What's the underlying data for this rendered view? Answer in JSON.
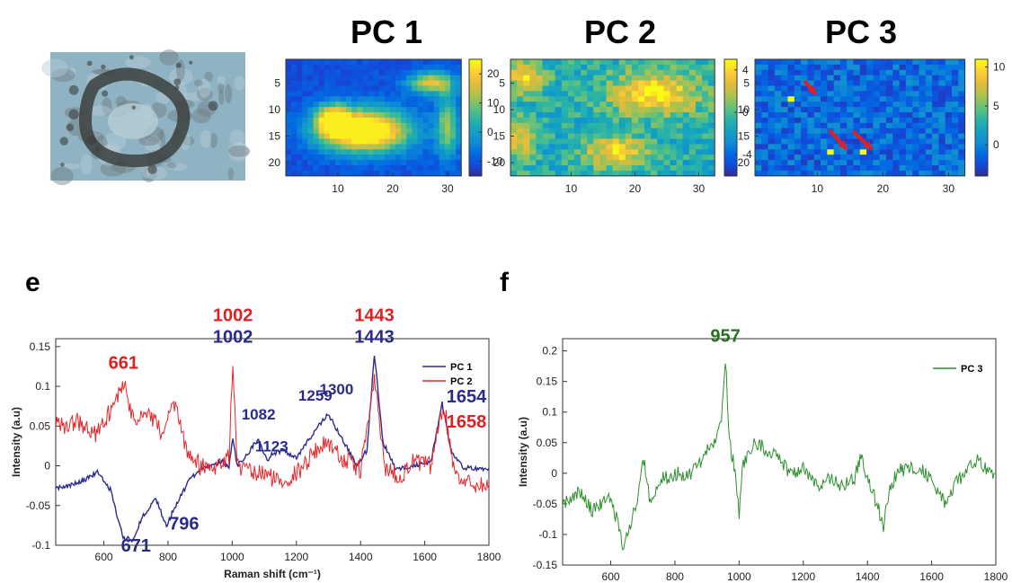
{
  "photo": {
    "colors": {
      "bg": "#8fb3c3",
      "dark": "#3c3f3d",
      "mid": "#6f7d80",
      "light": "#b8cdd6"
    }
  },
  "heatmap_titles": [
    "PC 1",
    "PC 2",
    "PC 3"
  ],
  "panel_labels": {
    "e": "e",
    "f": "f"
  },
  "colors": {
    "pc1": "#2c2c8f",
    "pc2": "#e8262a",
    "pc3": "#2f8f2f",
    "peak_red": "#e02020",
    "peak_blue": "#2a2a8a",
    "peak_green": "#2a6e22",
    "arrow": "#e02020"
  },
  "chart_data": [
    {
      "type": "heatmap",
      "title": "PC 1",
      "x_ticks": [
        10,
        20,
        30
      ],
      "y_ticks": [
        5,
        10,
        15,
        20
      ],
      "colorbar_ticks": [
        20,
        10,
        0,
        -10
      ],
      "clim": [
        -15,
        25
      ],
      "cols": 32,
      "rows": 22,
      "note": "",
      "blobs": [
        [
          15,
          14,
          8,
          4,
          45
        ],
        [
          9,
          12,
          3,
          3,
          30
        ],
        [
          27,
          5,
          4,
          2,
          28
        ],
        [
          30,
          13,
          2,
          6,
          22
        ]
      ]
    },
    {
      "type": "heatmap",
      "title": "PC 2",
      "x_ticks": [
        10,
        20,
        30
      ],
      "y_ticks": [
        5,
        10,
        15,
        20
      ],
      "colorbar_ticks": [
        4,
        0,
        -4
      ],
      "clim": [
        -6,
        5
      ],
      "cols": 32,
      "rows": 22
    },
    {
      "type": "heatmap",
      "title": "PC 3",
      "x_ticks": [
        10,
        20,
        30
      ],
      "y_ticks": [
        5,
        10,
        15,
        20
      ],
      "colorbar_ticks": [
        10,
        5,
        0
      ],
      "clim": [
        -4,
        11
      ],
      "cols": 32,
      "rows": 22,
      "hotspots": [
        [
          6,
          8
        ],
        [
          12,
          18
        ],
        [
          17,
          18
        ]
      ]
    },
    {
      "type": "line",
      "panel": "e",
      "xlabel": "Raman shift (cm⁻¹)",
      "ylabel": "Intensity (a.u)",
      "xlim": [
        450,
        1800
      ],
      "ylim": [
        -0.1,
        0.16
      ],
      "x_ticks": [
        600,
        800,
        1000,
        1200,
        1400,
        1600,
        1800
      ],
      "y_ticks": [
        -0.1,
        -0.05,
        0,
        0.05,
        0.1,
        0.15
      ],
      "y_tick_labels": [
        "-0.1",
        "-0.05",
        "0",
        "0.05",
        "0.1",
        "0.15"
      ],
      "series": [
        {
          "name": "PC 1",
          "key": "pc1",
          "points": [
            [
              450,
              -0.028
            ],
            [
              520,
              -0.022
            ],
            [
              580,
              -0.008
            ],
            [
              620,
              -0.03
            ],
            [
              660,
              -0.09
            ],
            [
              690,
              -0.093
            ],
            [
              720,
              -0.065
            ],
            [
              760,
              -0.04
            ],
            [
              795,
              -0.075
            ],
            [
              830,
              -0.045
            ],
            [
              870,
              -0.015
            ],
            [
              920,
              0.0
            ],
            [
              970,
              0.005
            ],
            [
              990,
              0.0
            ],
            [
              1002,
              0.035
            ],
            [
              1015,
              0.0
            ],
            [
              1040,
              0.01
            ],
            [
              1082,
              0.035
            ],
            [
              1110,
              0.005
            ],
            [
              1123,
              0.015
            ],
            [
              1160,
              0.02
            ],
            [
              1200,
              0.01
            ],
            [
              1259,
              0.045
            ],
            [
              1300,
              0.065
            ],
            [
              1340,
              0.035
            ],
            [
              1390,
              0.0
            ],
            [
              1420,
              0.02
            ],
            [
              1443,
              0.14
            ],
            [
              1470,
              0.03
            ],
            [
              1510,
              -0.005
            ],
            [
              1560,
              0.0
            ],
            [
              1620,
              0.005
            ],
            [
              1654,
              0.08
            ],
            [
              1680,
              0.02
            ],
            [
              1720,
              -0.003
            ],
            [
              1800,
              -0.003
            ]
          ]
        },
        {
          "name": "PC 2",
          "key": "pc2",
          "points": [
            [
              450,
              0.05
            ],
            [
              520,
              0.055
            ],
            [
              580,
              0.04
            ],
            [
              620,
              0.07
            ],
            [
              661,
              0.105
            ],
            [
              700,
              0.05
            ],
            [
              740,
              0.07
            ],
            [
              780,
              0.04
            ],
            [
              820,
              0.075
            ],
            [
              860,
              0.02
            ],
            [
              900,
              0.0
            ],
            [
              950,
              0.0
            ],
            [
              990,
              0.01
            ],
            [
              1002,
              0.135
            ],
            [
              1015,
              0.0
            ],
            [
              1060,
              -0.01
            ],
            [
              1100,
              -0.01
            ],
            [
              1150,
              -0.02
            ],
            [
              1200,
              -0.01
            ],
            [
              1260,
              0.02
            ],
            [
              1300,
              0.03
            ],
            [
              1340,
              0.01
            ],
            [
              1400,
              -0.005
            ],
            [
              1443,
              0.108
            ],
            [
              1475,
              0.0
            ],
            [
              1520,
              -0.015
            ],
            [
              1560,
              0.005
            ],
            [
              1620,
              0.0
            ],
            [
              1658,
              0.08
            ],
            [
              1690,
              0.0
            ],
            [
              1720,
              -0.02
            ],
            [
              1800,
              -0.025
            ]
          ]
        }
      ],
      "peak_labels": [
        {
          "text": "661",
          "x": 661,
          "y": 0.122,
          "color": "peak_red"
        },
        {
          "text": "1002",
          "x": 1002,
          "y": 0.182,
          "color": "peak_red"
        },
        {
          "text": "1002",
          "x": 1002,
          "y": 0.155,
          "color": "peak_blue"
        },
        {
          "text": "1443",
          "x": 1443,
          "y": 0.182,
          "color": "peak_red"
        },
        {
          "text": "1443",
          "x": 1443,
          "y": 0.155,
          "color": "peak_blue"
        },
        {
          "text": "1082",
          "x": 1082,
          "y": 0.058,
          "color": "peak_blue"
        },
        {
          "text": "1123",
          "x": 1123,
          "y": 0.018,
          "color": "peak_blue"
        },
        {
          "text": "1259",
          "x": 1259,
          "y": 0.082,
          "color": "peak_blue"
        },
        {
          "text": "1300",
          "x": 1325,
          "y": 0.09,
          "color": "peak_blue"
        },
        {
          "text": "1654",
          "x": 1730,
          "y": 0.08,
          "color": "peak_blue"
        },
        {
          "text": "1658",
          "x": 1730,
          "y": 0.048,
          "color": "peak_red"
        },
        {
          "text": "671",
          "x": 700,
          "y": -0.108,
          "color": "peak_blue"
        },
        {
          "text": "796",
          "x": 850,
          "y": -0.08,
          "color": "peak_blue"
        }
      ],
      "legend": [
        {
          "label": "PC 1",
          "key": "pc1"
        },
        {
          "label": "PC 2",
          "key": "pc2"
        }
      ]
    },
    {
      "type": "line",
      "panel": "f",
      "xlabel": "",
      "ylabel": "Intensity (a.u)",
      "xlim": [
        450,
        1800
      ],
      "ylim": [
        -0.15,
        0.22
      ],
      "x_ticks": [
        600,
        800,
        1000,
        1200,
        1400,
        1600,
        1800
      ],
      "y_ticks": [
        -0.15,
        -0.1,
        -0.05,
        0,
        0.05,
        0.1,
        0.15,
        0.2
      ],
      "y_tick_labels": [
        "-0.15",
        "-0.1",
        "-0.05",
        "0",
        "0.05",
        "0.1",
        "0.15",
        "0.2"
      ],
      "series": [
        {
          "name": "PC 3",
          "key": "pc3",
          "points": [
            [
              450,
              -0.05
            ],
            [
              500,
              -0.03
            ],
            [
              540,
              -0.06
            ],
            [
              600,
              -0.04
            ],
            [
              620,
              -0.08
            ],
            [
              640,
              -0.12
            ],
            [
              680,
              -0.05
            ],
            [
              700,
              0.03
            ],
            [
              720,
              -0.04
            ],
            [
              760,
              -0.01
            ],
            [
              800,
              0.0
            ],
            [
              840,
              -0.005
            ],
            [
              880,
              0.02
            ],
            [
              920,
              0.05
            ],
            [
              945,
              0.09
            ],
            [
              957,
              0.19
            ],
            [
              970,
              0.05
            ],
            [
              990,
              0.0
            ],
            [
              1000,
              -0.07
            ],
            [
              1010,
              0.01
            ],
            [
              1050,
              0.05
            ],
            [
              1080,
              0.04
            ],
            [
              1120,
              0.03
            ],
            [
              1160,
              0.0
            ],
            [
              1200,
              0.01
            ],
            [
              1240,
              -0.02
            ],
            [
              1280,
              -0.01
            ],
            [
              1320,
              -0.02
            ],
            [
              1360,
              -0.01
            ],
            [
              1380,
              0.03
            ],
            [
              1400,
              -0.01
            ],
            [
              1430,
              -0.05
            ],
            [
              1450,
              -0.09
            ],
            [
              1470,
              -0.02
            ],
            [
              1500,
              0.005
            ],
            [
              1560,
              0.01
            ],
            [
              1600,
              -0.01
            ],
            [
              1640,
              -0.05
            ],
            [
              1660,
              -0.03
            ],
            [
              1700,
              0.0
            ],
            [
              1740,
              0.02
            ],
            [
              1800,
              0.0
            ]
          ]
        }
      ],
      "peak_labels": [
        {
          "text": "957",
          "x": 957,
          "y": 0.215,
          "color": "peak_green"
        }
      ],
      "legend": [
        {
          "label": "PC 3",
          "key": "pc3"
        }
      ]
    }
  ]
}
